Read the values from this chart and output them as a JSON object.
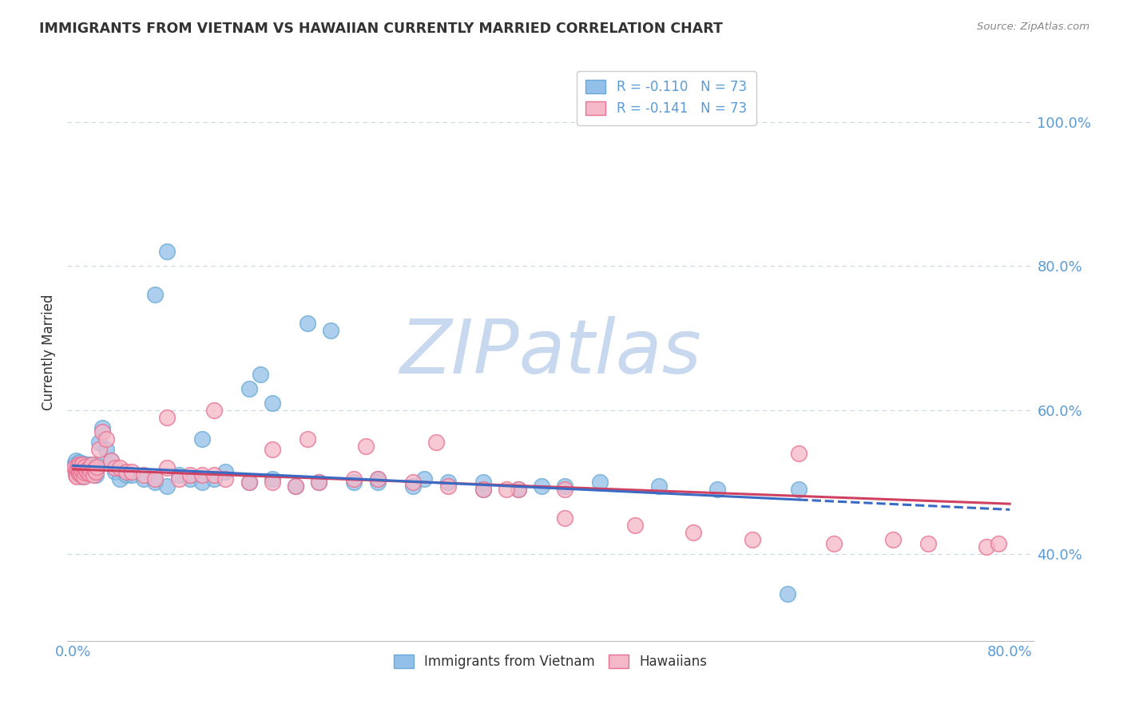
{
  "title": "IMMIGRANTS FROM VIETNAM VS HAWAIIAN CURRENTLY MARRIED CORRELATION CHART",
  "source": "Source: ZipAtlas.com",
  "ylabel": "Currently Married",
  "xlim": [
    -0.005,
    0.82
  ],
  "ylim": [
    0.28,
    1.08
  ],
  "yticks": [
    0.4,
    0.6,
    0.8,
    1.0
  ],
  "ytick_labels": [
    "40.0%",
    "60.0%",
    "80.0%",
    "100.0%"
  ],
  "xticks": [
    0.0,
    0.1,
    0.2,
    0.3,
    0.4,
    0.5,
    0.6,
    0.7,
    0.8
  ],
  "xtick_labels": [
    "0.0%",
    "",
    "",
    "",
    "",
    "",
    "",
    "",
    "80.0%"
  ],
  "legend_R1": "R = -0.110",
  "legend_N1": "N = 73",
  "legend_R2": "R = -0.141",
  "legend_N2": "N = 73",
  "color_blue": "#92C0E8",
  "color_blue_edge": "#6AAAD4",
  "color_pink": "#F5B8C8",
  "color_pink_edge": "#E87090",
  "trend_blue": "#3A6BC4",
  "trend_pink": "#D04060",
  "watermark": "ZIPatlas",
  "watermark_color": "#C8D8EE",
  "grid_color": "#C8D4E8",
  "title_color": "#333333",
  "axis_label_color": "#5B9BD5",
  "legend_label1": "Immigrants from Vietnam",
  "legend_label2": "Hawaiians",
  "blue_x": [
    0.001,
    0.002,
    0.002,
    0.003,
    0.003,
    0.004,
    0.004,
    0.005,
    0.005,
    0.006,
    0.006,
    0.007,
    0.007,
    0.008,
    0.008,
    0.009,
    0.009,
    0.01,
    0.01,
    0.011,
    0.012,
    0.013,
    0.014,
    0.015,
    0.016,
    0.017,
    0.018,
    0.019,
    0.02,
    0.022,
    0.025,
    0.028,
    0.032,
    0.036,
    0.04,
    0.045,
    0.05,
    0.06,
    0.07,
    0.08,
    0.09,
    0.1,
    0.11,
    0.12,
    0.13,
    0.15,
    0.17,
    0.19,
    0.21,
    0.24,
    0.26,
    0.29,
    0.32,
    0.35,
    0.38,
    0.42,
    0.15,
    0.17,
    0.2,
    0.07,
    0.08,
    0.11,
    0.16,
    0.22,
    0.26,
    0.3,
    0.35,
    0.4,
    0.45,
    0.5,
    0.55,
    0.61,
    0.62
  ],
  "blue_y": [
    0.525,
    0.52,
    0.53,
    0.515,
    0.51,
    0.522,
    0.518,
    0.528,
    0.512,
    0.524,
    0.516,
    0.519,
    0.513,
    0.521,
    0.508,
    0.526,
    0.514,
    0.52,
    0.517,
    0.523,
    0.519,
    0.516,
    0.524,
    0.512,
    0.518,
    0.515,
    0.521,
    0.51,
    0.525,
    0.555,
    0.575,
    0.545,
    0.53,
    0.515,
    0.505,
    0.51,
    0.51,
    0.505,
    0.5,
    0.495,
    0.51,
    0.505,
    0.5,
    0.505,
    0.515,
    0.5,
    0.505,
    0.495,
    0.5,
    0.5,
    0.505,
    0.495,
    0.5,
    0.5,
    0.49,
    0.495,
    0.63,
    0.61,
    0.72,
    0.76,
    0.82,
    0.56,
    0.65,
    0.71,
    0.5,
    0.505,
    0.49,
    0.495,
    0.5,
    0.495,
    0.49,
    0.345,
    0.49
  ],
  "pink_x": [
    0.001,
    0.002,
    0.002,
    0.003,
    0.003,
    0.004,
    0.004,
    0.005,
    0.005,
    0.006,
    0.006,
    0.007,
    0.007,
    0.008,
    0.008,
    0.009,
    0.009,
    0.01,
    0.01,
    0.011,
    0.012,
    0.013,
    0.014,
    0.015,
    0.016,
    0.017,
    0.018,
    0.019,
    0.02,
    0.022,
    0.025,
    0.028,
    0.032,
    0.036,
    0.04,
    0.045,
    0.05,
    0.06,
    0.07,
    0.08,
    0.09,
    0.1,
    0.11,
    0.12,
    0.13,
    0.15,
    0.17,
    0.19,
    0.21,
    0.24,
    0.26,
    0.29,
    0.32,
    0.35,
    0.38,
    0.42,
    0.08,
    0.12,
    0.17,
    0.2,
    0.25,
    0.31,
    0.37,
    0.42,
    0.48,
    0.53,
    0.58,
    0.62,
    0.65,
    0.7,
    0.73,
    0.78,
    0.79
  ],
  "pink_y": [
    0.52,
    0.515,
    0.51,
    0.518,
    0.508,
    0.516,
    0.524,
    0.512,
    0.522,
    0.518,
    0.514,
    0.52,
    0.51,
    0.516,
    0.525,
    0.508,
    0.519,
    0.513,
    0.521,
    0.517,
    0.514,
    0.519,
    0.512,
    0.516,
    0.524,
    0.51,
    0.518,
    0.515,
    0.521,
    0.545,
    0.57,
    0.56,
    0.53,
    0.52,
    0.52,
    0.515,
    0.515,
    0.51,
    0.505,
    0.52,
    0.505,
    0.51,
    0.51,
    0.51,
    0.505,
    0.5,
    0.5,
    0.495,
    0.5,
    0.505,
    0.505,
    0.5,
    0.495,
    0.49,
    0.49,
    0.49,
    0.59,
    0.6,
    0.545,
    0.56,
    0.55,
    0.555,
    0.49,
    0.45,
    0.44,
    0.43,
    0.42,
    0.54,
    0.415,
    0.42,
    0.415,
    0.41,
    0.415
  ],
  "trend_blue_x0": 0.0,
  "trend_blue_x1": 0.8,
  "trend_blue_y0": 0.523,
  "trend_blue_y1": 0.462,
  "trend_blue_solid_end": 0.62,
  "trend_pink_x0": 0.0,
  "trend_pink_x1": 0.8,
  "trend_pink_y0": 0.518,
  "trend_pink_y1": 0.47
}
